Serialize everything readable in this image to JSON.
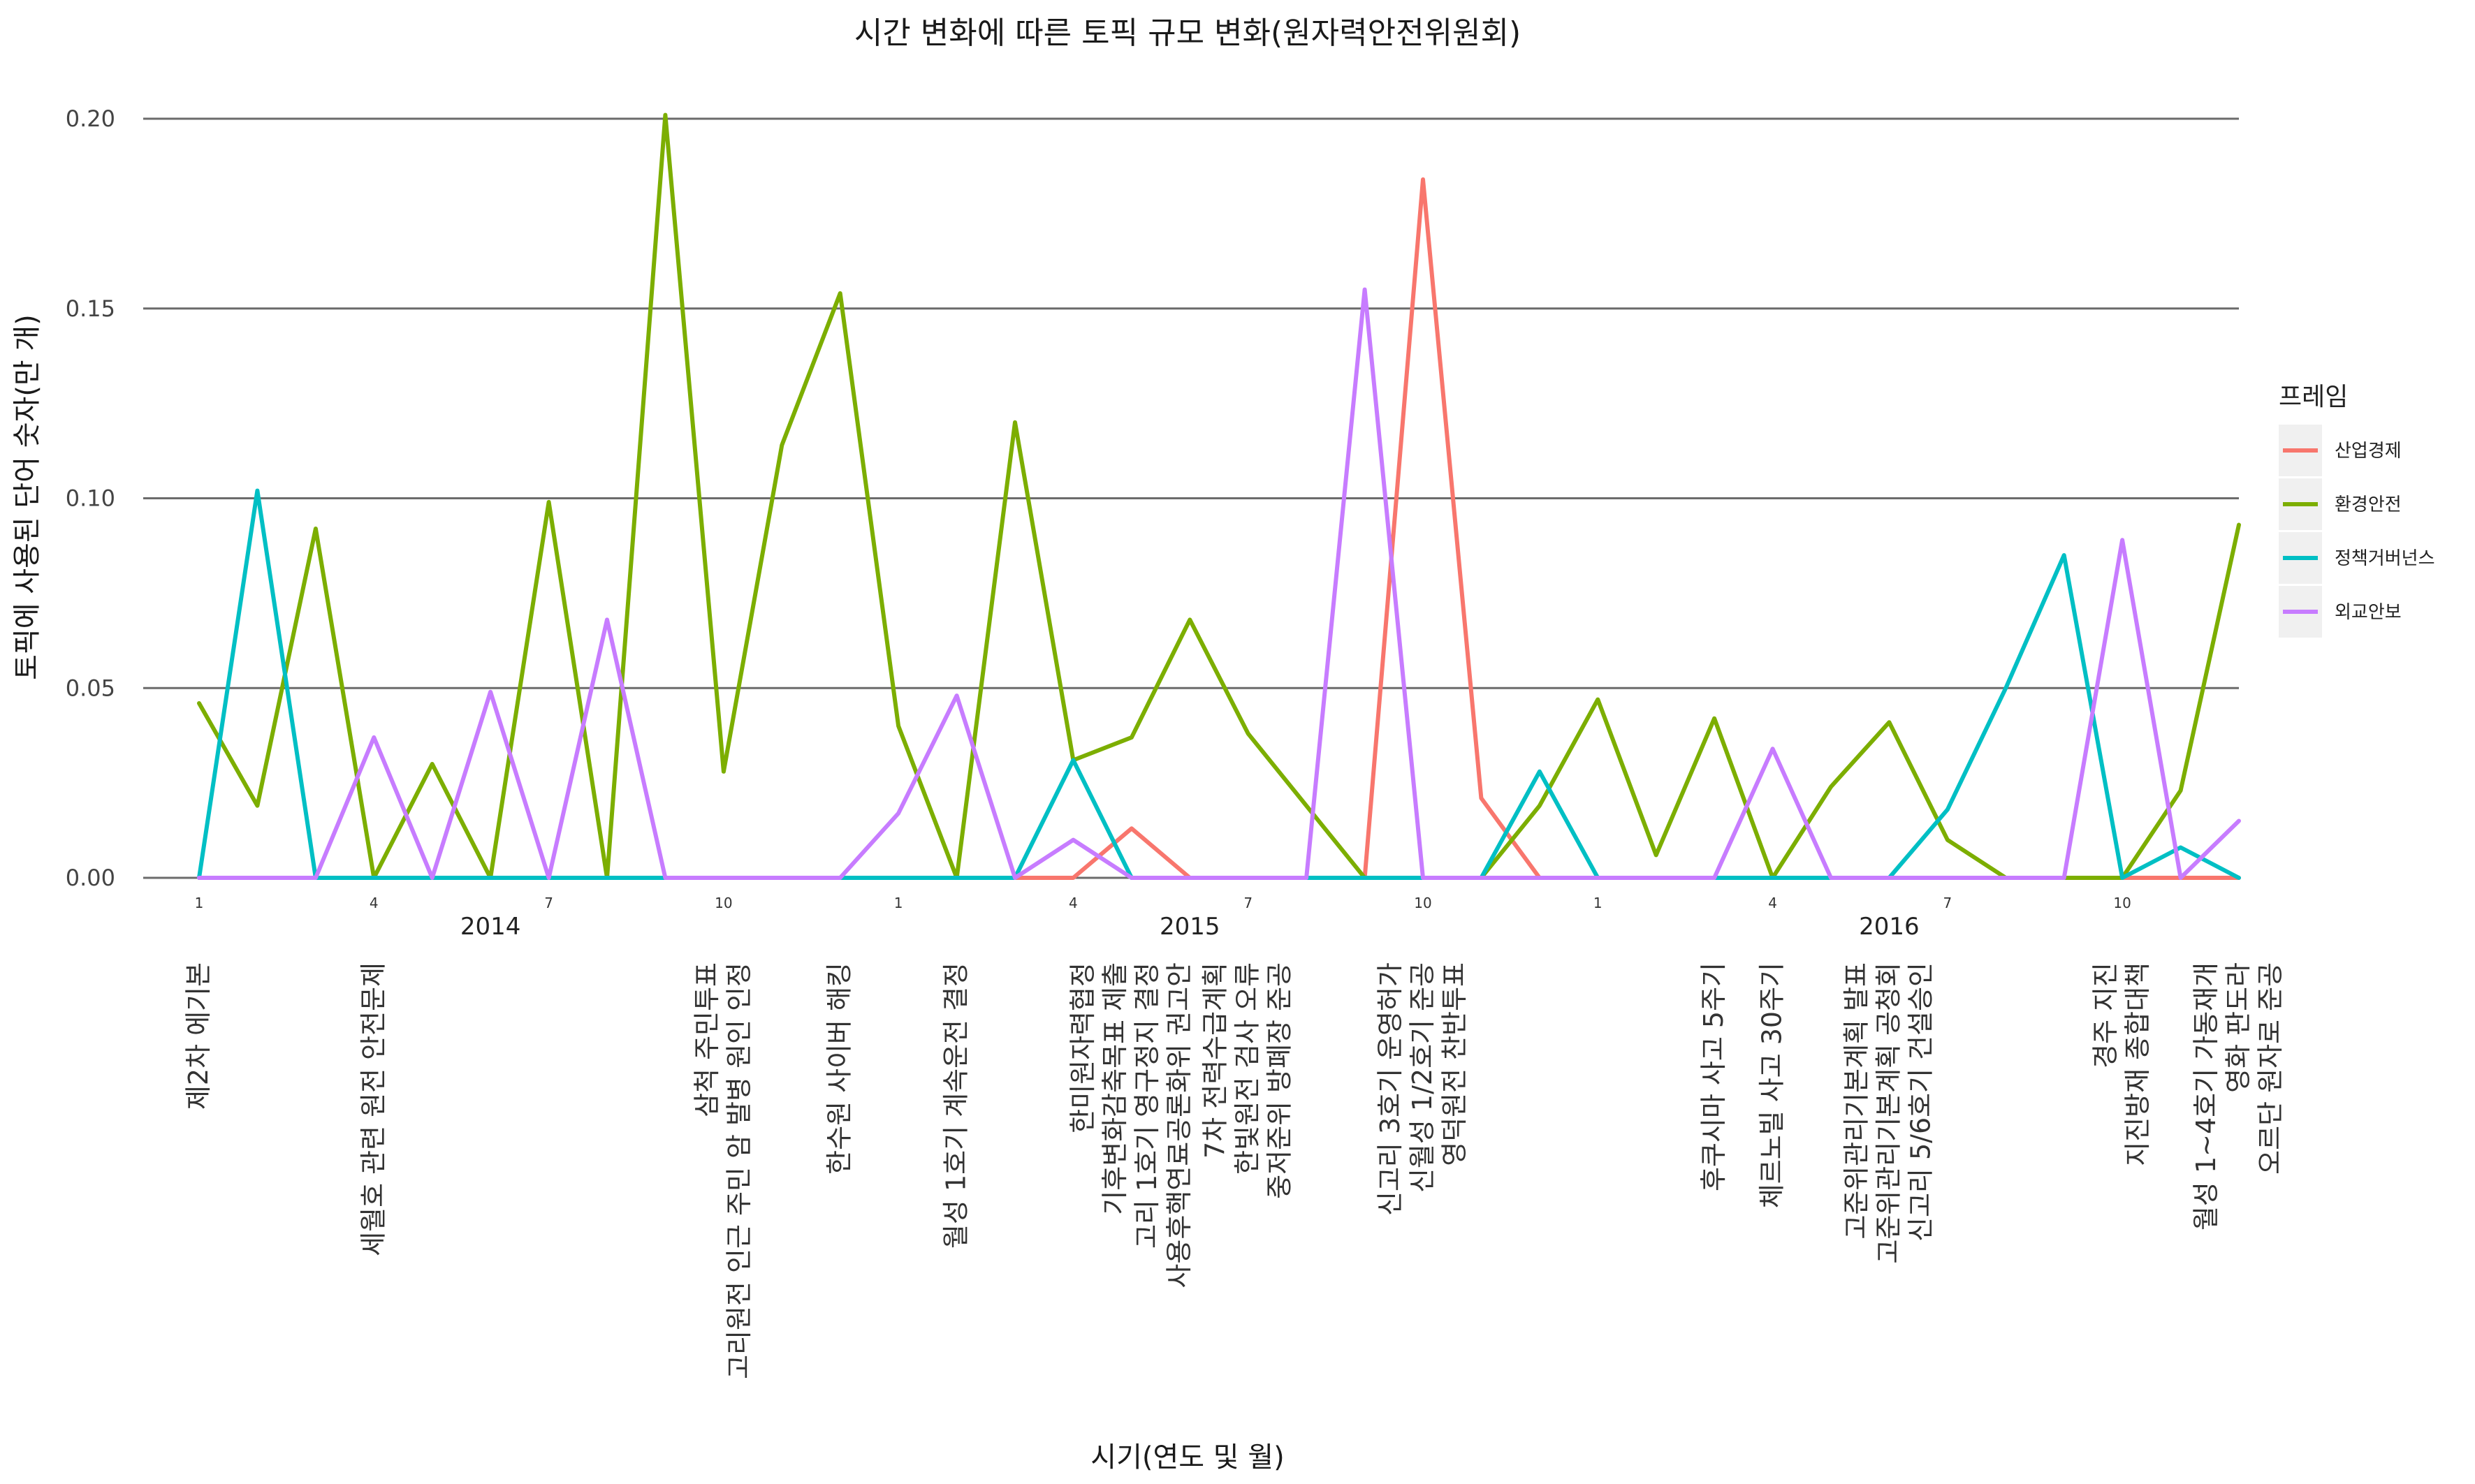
{
  "chart_data": {
    "type": "line",
    "title": "시간 변화에 따른 토픽 규모 변화(원자력안전위원회)",
    "xlabel": "시기(연도 및 월)",
    "ylabel": "토픽에 사용된 단어 숫자(만 개)",
    "ylim": [
      0,
      0.2
    ],
    "y_ticks": [
      "0.00",
      "0.05",
      "0.10",
      "0.15",
      "0.20"
    ],
    "grid": true,
    "legend": {
      "title": "프레임",
      "position": "right"
    },
    "x": [
      "2014-01",
      "2014-02",
      "2014-03",
      "2014-04",
      "2014-05",
      "2014-06",
      "2014-07",
      "2014-08",
      "2014-09",
      "2014-10",
      "2014-11",
      "2014-12",
      "2015-01",
      "2015-02",
      "2015-03",
      "2015-04",
      "2015-05",
      "2015-06",
      "2015-07",
      "2015-08",
      "2015-09",
      "2015-10",
      "2015-11",
      "2015-12",
      "2016-01",
      "2016-02",
      "2016-03",
      "2016-04",
      "2016-05",
      "2016-06",
      "2016-07",
      "2016-08",
      "2016-09",
      "2016-10",
      "2016-11",
      "2016-12"
    ],
    "month_ticks": [
      {
        "x": "2014-01",
        "label": "1"
      },
      {
        "x": "2014-04",
        "label": "4"
      },
      {
        "x": "2014-07",
        "label": "7"
      },
      {
        "x": "2014-10",
        "label": "10"
      },
      {
        "x": "2015-01",
        "label": "1"
      },
      {
        "x": "2015-04",
        "label": "4"
      },
      {
        "x": "2015-07",
        "label": "7"
      },
      {
        "x": "2015-10",
        "label": "10"
      },
      {
        "x": "2016-01",
        "label": "1"
      },
      {
        "x": "2016-04",
        "label": "4"
      },
      {
        "x": "2016-07",
        "label": "7"
      },
      {
        "x": "2016-10",
        "label": "10"
      }
    ],
    "year_labels": [
      {
        "x": "2014-06",
        "label": "2014"
      },
      {
        "x": "2015-06",
        "label": "2015"
      },
      {
        "x": "2016-06",
        "label": "2016"
      }
    ],
    "series": [
      {
        "name": "산업경제",
        "color": "#F8766D",
        "values": [
          0,
          0,
          0,
          0,
          0,
          0,
          0,
          0,
          0,
          0,
          0,
          0,
          0,
          0,
          0,
          0,
          0.013,
          0,
          0,
          0,
          0,
          0.184,
          0.021,
          0,
          0,
          0,
          0,
          0,
          0,
          0,
          0,
          0,
          0,
          0,
          0,
          0
        ]
      },
      {
        "name": "환경안전",
        "color": "#7CAE00",
        "values": [
          0.046,
          0.019,
          0.092,
          0,
          0.03,
          0,
          0.099,
          0,
          0.201,
          0.028,
          0.114,
          0.154,
          0.04,
          0,
          0.12,
          0.031,
          0.037,
          0.068,
          0.038,
          0.019,
          0,
          0,
          0,
          0.019,
          0.047,
          0.006,
          0.042,
          0,
          0.024,
          0.041,
          0.01,
          0,
          0,
          0,
          0.023,
          0.093
        ]
      },
      {
        "name": "정책거버넌스",
        "color": "#00BFC4",
        "values": [
          0,
          0.102,
          0,
          0,
          0,
          0,
          0,
          0,
          0,
          0,
          0,
          0,
          0,
          0,
          0,
          0.031,
          0,
          0,
          0,
          0,
          0,
          0,
          0,
          0.028,
          0,
          0,
          0,
          0,
          0,
          0,
          0.018,
          0.05,
          0.085,
          0,
          0.008,
          0
        ]
      },
      {
        "name": "외교안보",
        "color": "#C77CFF",
        "values": [
          0,
          0,
          0,
          0.037,
          0,
          0.049,
          0,
          0.068,
          0,
          0,
          0,
          0,
          0.017,
          0.048,
          0,
          0.01,
          0,
          0,
          0,
          0,
          0.155,
          0,
          0,
          0,
          0,
          0,
          0,
          0.034,
          0,
          0,
          0,
          0,
          0,
          0.089,
          0,
          0.015
        ]
      }
    ],
    "events": [
      {
        "x": "2014-01",
        "lines": [
          "제2차 에기본"
        ]
      },
      {
        "x": "2014-04",
        "lines": [
          "세월호 관련 원전 안전문제"
        ]
      },
      {
        "x": "2014-10",
        "lines": [
          "삼척 주민투표",
          "고리원전 인근 주민 암 발병 원인 인정"
        ]
      },
      {
        "x": "2014-12",
        "lines": [
          "한수원 사이버 해킹"
        ]
      },
      {
        "x": "2015-02",
        "lines": [
          "월성 1호기 계속운전 결정"
        ]
      },
      {
        "x": "2015-05",
        "lines": [
          "한미원자력협정",
          "기후변화감축목표 제출",
          "고리 1호기 영구정지 결정",
          "사용후핵연료공론화위 권고안"
        ]
      },
      {
        "x": "2015-07",
        "lines": [
          "7차 전력수급계획",
          "한빛원전 검사 오류",
          "중저준위 방폐장 준공"
        ]
      },
      {
        "x": "2015-10",
        "lines": [
          "신고리 3호기 운영허가",
          "신월성 1/2호기 준공",
          "영덕원전 찬반투표"
        ]
      },
      {
        "x": "2016-03",
        "lines": [
          "후쿠시마 사고 5주기"
        ]
      },
      {
        "x": "2016-04",
        "lines": [
          "체르노빌 사고 30주기"
        ]
      },
      {
        "x": "2016-06",
        "lines": [
          "고준위관리기본계획 발표",
          "고준위관리기본계획 공청회",
          "신고리 5/6호기 건설승인"
        ]
      },
      {
        "x": "2016-10",
        "lines": [
          "경주 지진",
          "지진방재 종합대책"
        ]
      },
      {
        "x": "2016-12",
        "lines": [
          "월성 1~4호기 가동재개",
          "영화 판도라",
          "오르단 원자로 준공"
        ]
      }
    ]
  }
}
